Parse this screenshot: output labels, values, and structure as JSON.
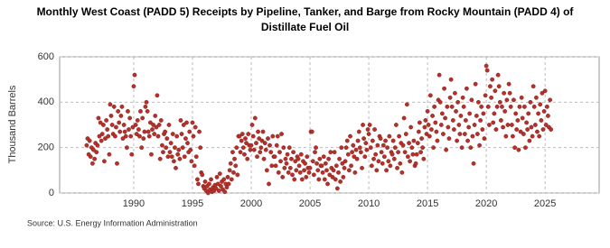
{
  "chart_data": {
    "type": "scatter",
    "title": "Monthly West Coast (PADD 5) Receipts by Pipeline, Tanker, and Barge from Rocky Mountain (PADD 4) of Distillate Fuel Oil",
    "y_label": "Thousand Barrels",
    "source": "Source: U.S. Energy Information Administration",
    "xlim": [
      1983.7,
      2029.6
    ],
    "xticks": [
      1990,
      1995,
      2000,
      2005,
      2010,
      2015,
      2020,
      2025
    ],
    "ylim": [
      0,
      600
    ],
    "yticks": [
      0,
      200,
      400,
      600
    ],
    "grid": true,
    "series": [
      {
        "name": "Receipts",
        "color": "#b5302a",
        "x": [
          1986,
          1986.08,
          1986.17,
          1986.25,
          1986.33,
          1986.42,
          1986.5,
          1986.58,
          1986.67,
          1986.75,
          1986.83,
          1986.92,
          1987,
          1987.08,
          1987.17,
          1987.25,
          1987.33,
          1987.42,
          1987.5,
          1987.58,
          1987.67,
          1987.75,
          1987.83,
          1987.92,
          1988,
          1988.08,
          1988.17,
          1988.25,
          1988.33,
          1988.42,
          1988.5,
          1988.58,
          1988.67,
          1988.75,
          1988.83,
          1988.92,
          1989,
          1989.08,
          1989.17,
          1989.25,
          1989.33,
          1989.42,
          1989.5,
          1989.58,
          1989.67,
          1989.75,
          1989.83,
          1989.92,
          1990,
          1990.08,
          1990.17,
          1990.25,
          1990.33,
          1990.42,
          1990.5,
          1990.58,
          1990.67,
          1990.75,
          1990.83,
          1990.92,
          1991,
          1991.08,
          1991.17,
          1991.25,
          1991.33,
          1991.42,
          1991.5,
          1991.58,
          1991.67,
          1991.75,
          1991.83,
          1991.92,
          1992,
          1992.08,
          1992.17,
          1992.25,
          1992.33,
          1992.42,
          1992.5,
          1992.58,
          1992.67,
          1992.75,
          1992.83,
          1992.92,
          1993,
          1993.08,
          1993.17,
          1993.25,
          1993.33,
          1993.42,
          1993.5,
          1993.58,
          1993.67,
          1993.75,
          1993.83,
          1993.92,
          1994,
          1994.08,
          1994.17,
          1994.25,
          1994.33,
          1994.42,
          1994.5,
          1994.58,
          1994.67,
          1994.75,
          1994.83,
          1994.92,
          1995,
          1995.08,
          1995.17,
          1995.25,
          1995.33,
          1995.42,
          1995.5,
          1995.58,
          1995.67,
          1995.75,
          1995.83,
          1995.92,
          1996,
          1996.08,
          1996.17,
          1996.25,
          1996.33,
          1996.42,
          1996.5,
          1996.58,
          1996.67,
          1996.75,
          1996.83,
          1996.92,
          1997,
          1997.08,
          1997.17,
          1997.25,
          1997.33,
          1997.42,
          1997.5,
          1997.58,
          1997.67,
          1997.75,
          1997.83,
          1997.92,
          1998,
          1998.08,
          1998.17,
          1998.25,
          1998.33,
          1998.42,
          1998.5,
          1998.58,
          1998.67,
          1998.75,
          1998.83,
          1998.92,
          1999,
          1999.08,
          1999.17,
          1999.25,
          1999.33,
          1999.42,
          1999.5,
          1999.58,
          1999.67,
          1999.75,
          1999.83,
          1999.92,
          2000,
          2000.08,
          2000.17,
          2000.25,
          2000.33,
          2000.42,
          2000.5,
          2000.58,
          2000.67,
          2000.75,
          2000.83,
          2000.92,
          2001,
          2001.08,
          2001.17,
          2001.25,
          2001.33,
          2001.42,
          2001.5,
          2001.58,
          2001.67,
          2001.75,
          2001.83,
          2001.92,
          2002,
          2002.08,
          2002.17,
          2002.25,
          2002.33,
          2002.42,
          2002.5,
          2002.58,
          2002.67,
          2002.75,
          2002.83,
          2002.92,
          2003,
          2003.08,
          2003.17,
          2003.25,
          2003.33,
          2003.42,
          2003.5,
          2003.58,
          2003.67,
          2003.75,
          2003.83,
          2003.92,
          2004,
          2004.08,
          2004.17,
          2004.25,
          2004.33,
          2004.42,
          2004.5,
          2004.58,
          2004.67,
          2004.75,
          2004.83,
          2004.92,
          2005,
          2005.08,
          2005.17,
          2005.25,
          2005.33,
          2005.42,
          2005.5,
          2005.58,
          2005.67,
          2005.75,
          2005.83,
          2005.92,
          2006,
          2006.08,
          2006.17,
          2006.25,
          2006.33,
          2006.42,
          2006.5,
          2006.58,
          2006.67,
          2006.75,
          2006.83,
          2006.92,
          2007,
          2007.08,
          2007.17,
          2007.25,
          2007.33,
          2007.42,
          2007.5,
          2007.58,
          2007.67,
          2007.75,
          2007.83,
          2007.92,
          2008,
          2008.08,
          2008.17,
          2008.25,
          2008.33,
          2008.42,
          2008.5,
          2008.58,
          2008.67,
          2008.75,
          2008.83,
          2008.92,
          2009,
          2009.08,
          2009.17,
          2009.25,
          2009.33,
          2009.42,
          2009.5,
          2009.58,
          2009.67,
          2009.75,
          2009.83,
          2009.92,
          2010,
          2010.08,
          2010.17,
          2010.25,
          2010.33,
          2010.42,
          2010.5,
          2010.58,
          2010.67,
          2010.75,
          2010.83,
          2010.92,
          2011,
          2011.08,
          2011.17,
          2011.25,
          2011.33,
          2011.42,
          2011.5,
          2011.58,
          2011.67,
          2011.75,
          2011.83,
          2011.92,
          2012,
          2012.08,
          2012.17,
          2012.25,
          2012.33,
          2012.42,
          2012.5,
          2012.58,
          2012.67,
          2012.75,
          2012.83,
          2012.92,
          2013,
          2013.08,
          2013.17,
          2013.25,
          2013.33,
          2013.42,
          2013.5,
          2013.58,
          2013.67,
          2013.75,
          2013.83,
          2013.92,
          2014,
          2014.08,
          2014.17,
          2014.25,
          2014.33,
          2014.42,
          2014.5,
          2014.58,
          2014.67,
          2014.75,
          2014.83,
          2014.92,
          2015,
          2015.08,
          2015.17,
          2015.25,
          2015.33,
          2015.42,
          2015.5,
          2015.58,
          2015.67,
          2015.75,
          2015.83,
          2015.92,
          2016,
          2016.08,
          2016.17,
          2016.25,
          2016.33,
          2016.42,
          2016.5,
          2016.58,
          2016.67,
          2016.75,
          2016.83,
          2016.92,
          2017,
          2017.08,
          2017.17,
          2017.25,
          2017.33,
          2017.42,
          2017.5,
          2017.58,
          2017.67,
          2017.75,
          2017.83,
          2017.92,
          2018,
          2018.08,
          2018.17,
          2018.25,
          2018.33,
          2018.42,
          2018.5,
          2018.58,
          2018.67,
          2018.75,
          2018.83,
          2018.92,
          2019,
          2019.08,
          2019.17,
          2019.25,
          2019.33,
          2019.42,
          2019.5,
          2019.58,
          2019.67,
          2019.75,
          2019.83,
          2019.92,
          2020,
          2020.08,
          2020.17,
          2020.25,
          2020.33,
          2020.42,
          2020.5,
          2020.58,
          2020.67,
          2020.75,
          2020.83,
          2020.92,
          2021,
          2021.08,
          2021.17,
          2021.25,
          2021.33,
          2021.42,
          2021.5,
          2021.58,
          2021.67,
          2021.75,
          2021.83,
          2021.92,
          2022,
          2022.08,
          2022.17,
          2022.25,
          2022.33,
          2022.42,
          2022.5,
          2022.58,
          2022.67,
          2022.75,
          2022.83,
          2022.92,
          2023,
          2023.08,
          2023.17,
          2023.25,
          2023.33,
          2023.42,
          2023.5,
          2023.58,
          2023.67,
          2023.75,
          2023.83,
          2023.92,
          2024,
          2024.08,
          2024.17,
          2024.25,
          2024.33,
          2024.42,
          2024.5,
          2024.58,
          2024.67,
          2024.75,
          2024.83,
          2024.92,
          2025,
          2025.08,
          2025.17,
          2025.25,
          2025.33,
          2025.42,
          2025.5
        ],
        "values": [
          210,
          240,
          170,
          230,
          160,
          200,
          130,
          190,
          150,
          220,
          180,
          210,
          330,
          250,
          310,
          230,
          260,
          300,
          140,
          240,
          320,
          280,
          250,
          170,
          390,
          340,
          300,
          260,
          380,
          250,
          290,
          130,
          360,
          310,
          270,
          340,
          380,
          240,
          300,
          270,
          250,
          200,
          360,
          280,
          330,
          250,
          170,
          290,
          470,
          520,
          300,
          260,
          320,
          280,
          250,
          360,
          200,
          330,
          240,
          270,
          380,
          400,
          360,
          270,
          250,
          310,
          170,
          280,
          300,
          260,
          340,
          290,
          430,
          250,
          300,
          150,
          320,
          210,
          180,
          260,
          270,
          200,
          240,
          160,
          300,
          180,
          220,
          160,
          260,
          140,
          200,
          110,
          250,
          170,
          190,
          150,
          320,
          260,
          200,
          300,
          160,
          240,
          310,
          220,
          180,
          270,
          190,
          140,
          310,
          250,
          120,
          290,
          160,
          60,
          40,
          270,
          200,
          90,
          80,
          30,
          20,
          50,
          10,
          30,
          0,
          40,
          15,
          60,
          5,
          25,
          10,
          35,
          20,
          70,
          40,
          10,
          85,
          30,
          50,
          15,
          60,
          5,
          40,
          25,
          70,
          40,
          100,
          130,
          60,
          180,
          90,
          150,
          120,
          200,
          80,
          250,
          250,
          180,
          230,
          260,
          200,
          170,
          240,
          220,
          150,
          260,
          210,
          190,
          210,
          300,
          250,
          190,
          330,
          220,
          160,
          270,
          240,
          180,
          200,
          230,
          270,
          150,
          220,
          190,
          100,
          240,
          40,
          210,
          180,
          120,
          250,
          160,
          160,
          120,
          210,
          250,
          90,
          180,
          140,
          260,
          70,
          200,
          110,
          150,
          130,
          170,
          90,
          200,
          110,
          150,
          80,
          180,
          60,
          140,
          100,
          160,
          150,
          120,
          90,
          170,
          60,
          140,
          100,
          130,
          70,
          160,
          110,
          90,
          110,
          270,
          270,
          140,
          80,
          180,
          200,
          130,
          100,
          60,
          150,
          120,
          120,
          90,
          160,
          60,
          130,
          100,
          40,
          150,
          80,
          180,
          110,
          70,
          100,
          180,
          60,
          120,
          20,
          90,
          150,
          50,
          200,
          130,
          70,
          110,
          140,
          200,
          230,
          170,
          100,
          250,
          120,
          180,
          210,
          160,
          90,
          190,
          150,
          230,
          270,
          200,
          180,
          110,
          300,
          240,
          160,
          220,
          190,
          280,
          260,
          300,
          200,
          120,
          230,
          150,
          280,
          170,
          100,
          210,
          140,
          250,
          240,
          180,
          130,
          210,
          160,
          230,
          100,
          200,
          140,
          250,
          120,
          180,
          170,
          230,
          150,
          200,
          300,
          110,
          180,
          250,
          130,
          220,
          90,
          210,
          330,
          180,
          260,
          390,
          160,
          220,
          140,
          290,
          200,
          170,
          230,
          120,
          130,
          170,
          220,
          270,
          310,
          180,
          240,
          200,
          150,
          290,
          320,
          260,
          360,
          300,
          250,
          430,
          280,
          340,
          200,
          380,
          310,
          270,
          230,
          410,
          520,
          400,
          300,
          350,
          260,
          460,
          330,
          190,
          380,
          290,
          240,
          420,
          500,
          380,
          320,
          280,
          440,
          360,
          230,
          400,
          300,
          260,
          340,
          200,
          420,
          380,
          260,
          320,
          460,
          230,
          290,
          350,
          200,
          410,
          250,
          130,
          300,
          480,
          340,
          260,
          400,
          210,
          320,
          380,
          280,
          350,
          240,
          430,
          560,
          540,
          380,
          300,
          470,
          420,
          500,
          310,
          350,
          450,
          280,
          380,
          520,
          470,
          400,
          320,
          380,
          290,
          440,
          360,
          250,
          410,
          300,
          480,
          440,
          380,
          300,
          250,
          410,
          200,
          350,
          280,
          320,
          190,
          380,
          270,
          420,
          330,
          260,
          380,
          200,
          310,
          280,
          350,
          230,
          400,
          290,
          250,
          470,
          380,
          300,
          420,
          270,
          350,
          250,
          390,
          320,
          440,
          280,
          360,
          450,
          300,
          380,
          340,
          290,
          410,
          280
        ]
      }
    ]
  }
}
